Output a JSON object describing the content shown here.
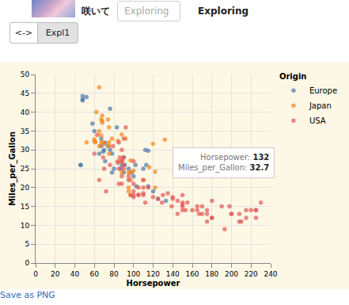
{
  "page": {
    "caption": "咲いて",
    "input_placeholder": "Exploring",
    "status": "Exploring",
    "buttons": [
      "<->",
      "Expl1"
    ],
    "link": "Save as PNG"
  },
  "chart_data": {
    "type": "scatter",
    "x_label": "Horsepower",
    "y_label": "Miles_per_Gallon",
    "legend_title": "Origin",
    "legend": "right",
    "grid": true,
    "marker": "circle",
    "xlim": [
      0,
      240
    ],
    "xticks": [
      0,
      20,
      40,
      60,
      80,
      100,
      120,
      140,
      160,
      180,
      200,
      220,
      240
    ],
    "ylim": [
      0,
      50
    ],
    "yticks": [
      0,
      5,
      10,
      15,
      20,
      25,
      30,
      35,
      40,
      45,
      50
    ],
    "series": [
      {
        "name": "Europe",
        "color": "#4c78a8",
        "x": [
          46,
          87,
          90,
          95,
          113,
          90,
          46,
          48,
          48,
          78,
          70,
          67,
          76,
          71,
          98,
          102,
          112,
          115,
          83,
          52,
          48,
          133,
          125,
          103,
          120,
          110,
          115,
          100,
          78,
          74,
          67,
          80,
          88,
          91,
          76,
          65,
          60,
          71,
          69,
          58
        ],
        "values": [
          26,
          25,
          24,
          25,
          26,
          28,
          26,
          43.1,
          44.3,
          29,
          30,
          33,
          30,
          27,
          24,
          26,
          30,
          29.8,
          36,
          44,
          43.4,
          16.5,
          17,
          20.3,
          19,
          25,
          20.3,
          23,
          24,
          31,
          31,
          25,
          26,
          26,
          40.9,
          29,
          35,
          31.9,
          29.5,
          37
        ]
      },
      {
        "name": "Japan",
        "color": "#f58518",
        "x": [
          95,
          88,
          97,
          65,
          69,
          75,
          61,
          97,
          52,
          95,
          122,
          88,
          75,
          65,
          60,
          68,
          65,
          67,
          74,
          92,
          97,
          132,
          110,
          100,
          97,
          95,
          88,
          75,
          70,
          78,
          67,
          62,
          68,
          60,
          84,
          67,
          88,
          68,
          122,
          116,
          120,
          75
        ],
        "values": [
          24,
          27,
          24,
          31,
          32,
          29,
          32,
          18,
          32,
          20,
          20,
          24,
          32,
          35,
          32.8,
          37.2,
          46.6,
          38,
          38.1,
          33,
          27.2,
          32.7,
          22,
          24.5,
          22,
          19,
          27.2,
          31,
          31.5,
          33,
          32,
          40,
          39.1,
          32.3,
          32.4,
          33.8,
          34.1,
          37.7,
          24.2,
          25.4,
          31.6,
          36
        ]
      },
      {
        "name": "USA",
        "color": "#e45756",
        "x": [
          130,
          165,
          150,
          150,
          140,
          198,
          220,
          215,
          225,
          190,
          170,
          160,
          150,
          225,
          95,
          97,
          85,
          88,
          100,
          105,
          100,
          88,
          165,
          175,
          153,
          150,
          180,
          170,
          175,
          110,
          72,
          100,
          88,
          86,
          90,
          70,
          76,
          65,
          69,
          60,
          110,
          139,
          129,
          145,
          230,
          105,
          140,
          85,
          90,
          84,
          92,
          84,
          79,
          63,
          90,
          88,
          110,
          85,
          100,
          90,
          208,
          180,
          155,
          150,
          145,
          120,
          110,
          105,
          95,
          125,
          115,
          135,
          100,
          112,
          193,
          210,
          208,
          215,
          225,
          200,
          175,
          180,
          167,
          200
        ],
        "values": [
          18,
          15,
          18,
          16,
          17,
          15,
          14,
          14,
          14,
          15,
          15,
          14,
          15,
          14,
          22,
          18,
          21,
          27,
          19,
          18,
          21,
          21,
          14,
          14,
          14,
          14,
          12,
          13,
          13,
          18,
          19,
          18,
          23,
          28,
          25,
          25,
          26,
          22,
          28,
          29,
          20,
          15,
          16,
          13,
          16,
          18.1,
          17.5,
          25,
          26,
          26.6,
          36,
          27,
          31,
          34,
          28,
          30,
          22,
          32,
          27,
          33,
          13,
          16.5,
          16,
          15.5,
          16.5,
          17.5,
          18.5,
          20,
          23,
          17,
          20,
          18.5,
          17.5,
          16,
          9,
          11,
          11,
          12,
          12,
          13,
          11,
          12,
          13,
          13
        ]
      }
    ],
    "annotations": [
      {
        "x": 132,
        "y": 32.7,
        "lines": [
          {
            "label": "Horsepower:",
            "value": 132
          },
          {
            "label": "Miles_per_Gallon:",
            "value": 32.7
          }
        ]
      }
    ]
  }
}
